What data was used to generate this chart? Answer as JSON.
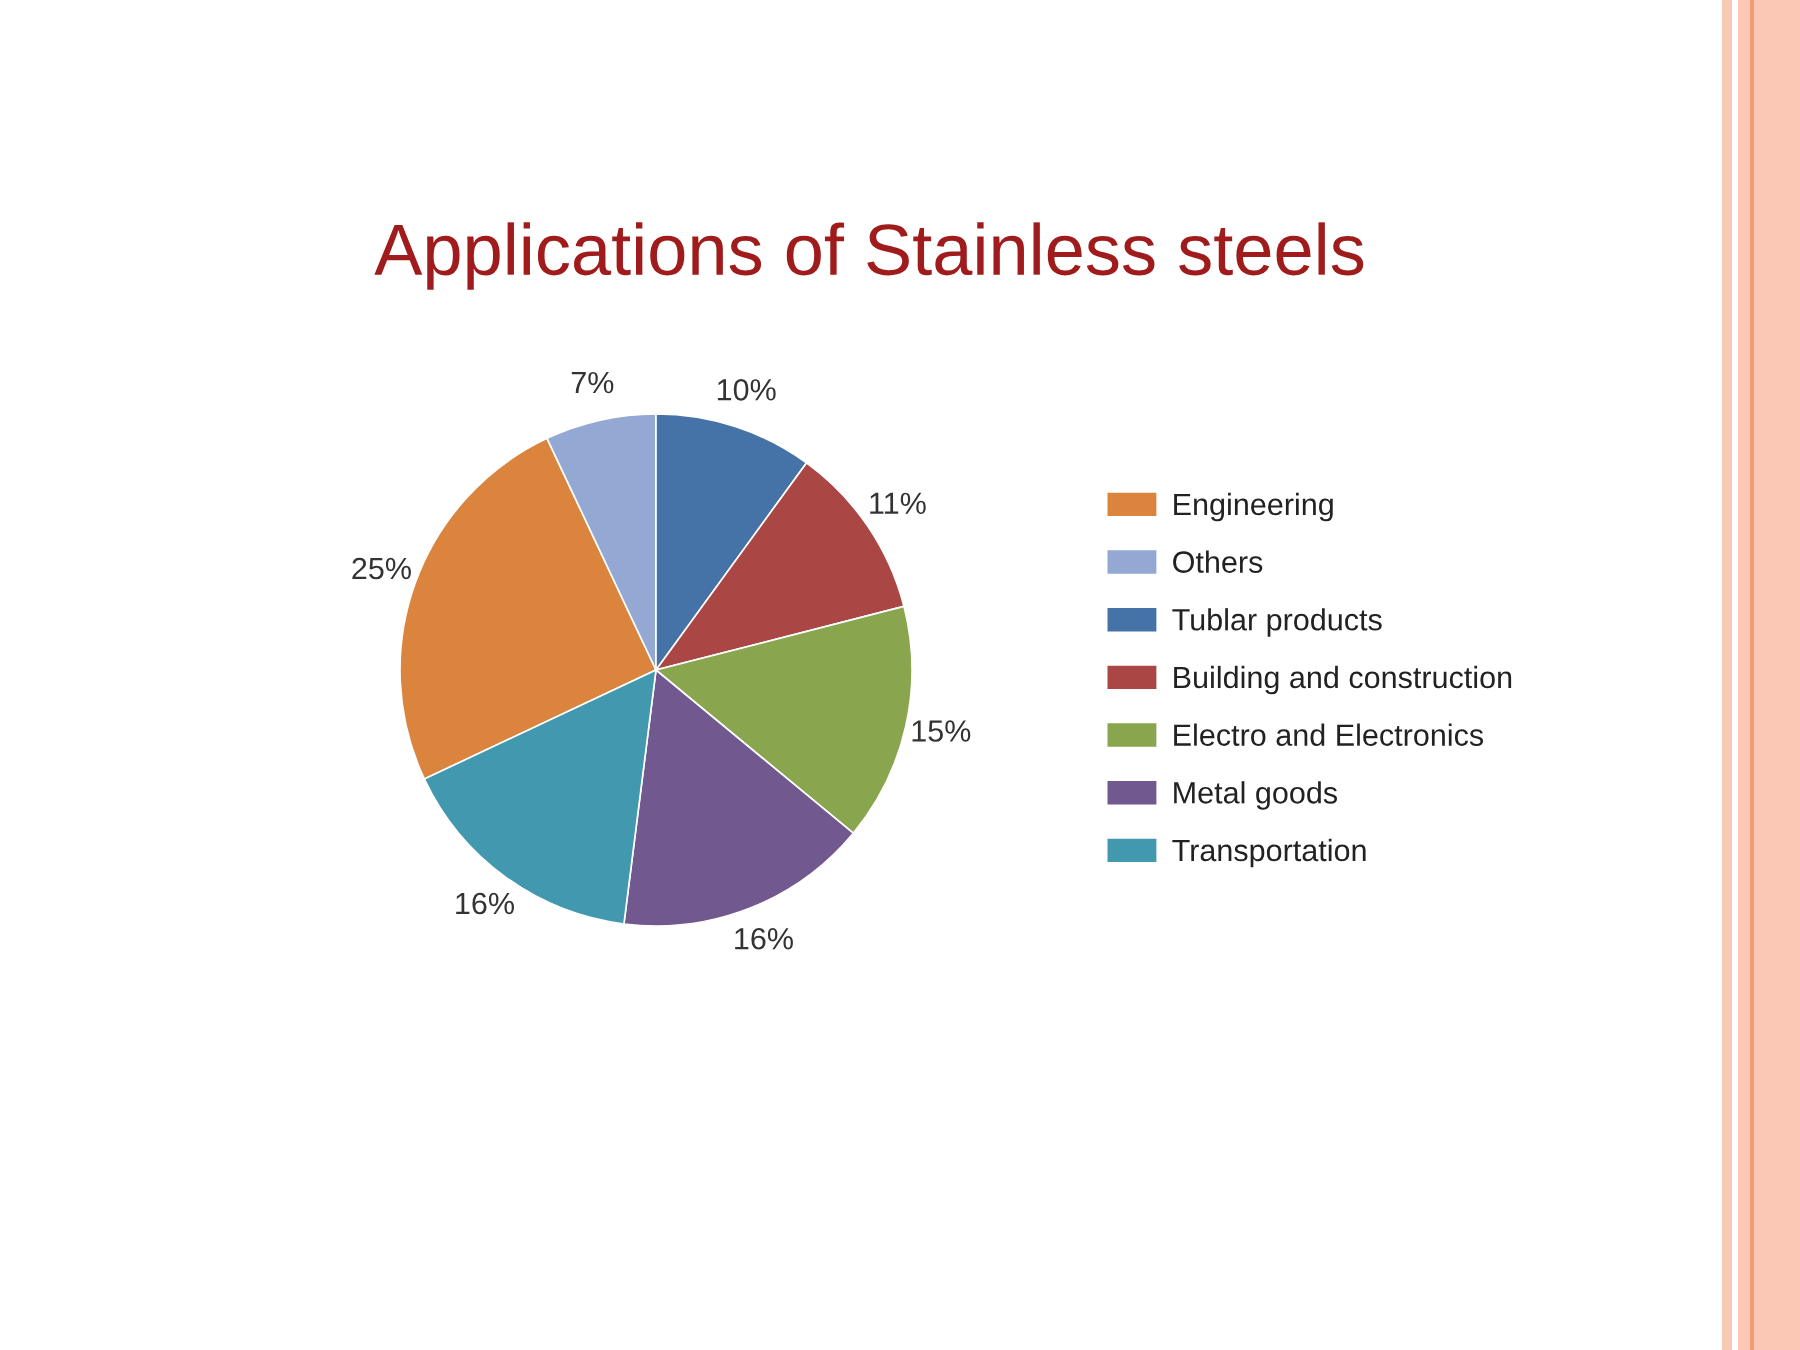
{
  "chart_data": {
    "type": "pie",
    "title": "Applications of Stainless steels",
    "categories": [
      "Engineering",
      "Others",
      "Tublar products",
      "Building and construction",
      "Electro and Electronics",
      "Metal goods",
      "Transportation"
    ],
    "values": [
      25,
      7,
      10,
      11,
      15,
      16,
      16
    ],
    "colors": [
      "#db843d",
      "#93a9d4",
      "#4572a7",
      "#aa4643",
      "#89a54e",
      "#71588f",
      "#4198af"
    ],
    "value_labels": [
      "25%",
      "7%",
      "10%",
      "11%",
      "15%",
      "16%",
      "16%"
    ],
    "legend": "right"
  }
}
